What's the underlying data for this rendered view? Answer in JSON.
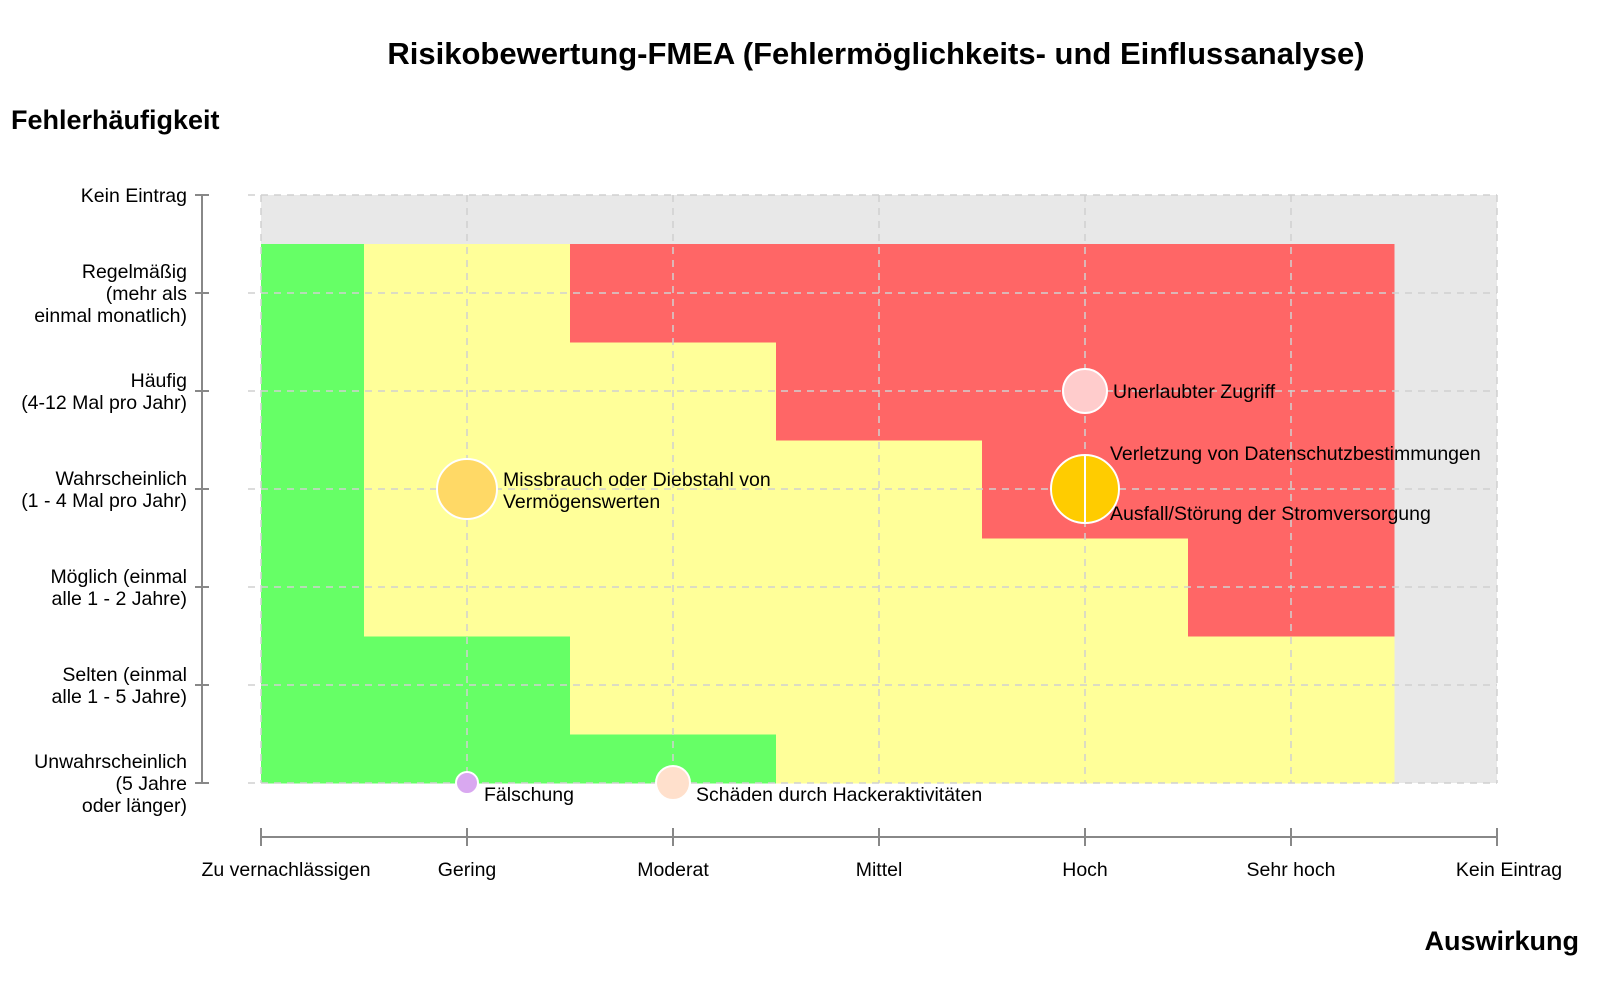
{
  "chart_data": {
    "type": "scatter",
    "title": "Risikobewertung-FMEA (Fehlermöglichkeits- und Einflussanalyse)",
    "ylabel": "Fehlerhäufigkeit",
    "xlabel": "Auswirkung",
    "x_categories": [
      "Zu vernachlässigen",
      "Gering",
      "Moderat",
      "Mittel",
      "Hoch",
      "Sehr hoch",
      "Kein Eintrag"
    ],
    "y_categories": [
      [
        "Unwahrscheinlich",
        "(5 Jahre",
        "oder länger)"
      ],
      [
        "Selten (einmal",
        "alle 1 - 5 Jahre)"
      ],
      [
        "Möglich (einmal",
        "alle 1 - 2 Jahre)"
      ],
      [
        "Wahrscheinlich",
        "(1 - 4 Mal pro Jahr)"
      ],
      [
        "Häufig",
        "(4-12 Mal pro Jahr)"
      ],
      [
        "Regelmäßig",
        "(mehr als",
        "einmal monatlich)"
      ],
      [
        "Kein Eintrag"
      ]
    ],
    "zones": {
      "colors": {
        "low": "#66ff66",
        "medium": "#ffff99",
        "high": "#ff6666",
        "none": "#e8e8e8"
      },
      "medium_min_x_by_frequency": [
        3,
        2,
        1,
        1,
        1,
        1
      ],
      "high_min_x_by_frequency": [
        null,
        null,
        4.5,
        3.5,
        2.5,
        1.5
      ]
    },
    "points": [
      {
        "label": [
          "Missbrauch oder Diebstahl von",
          "Vermögenswerten"
        ],
        "x": 1,
        "y": 3,
        "size": 3,
        "color": "#ffd966",
        "half": null
      },
      {
        "label": [
          "Unerlaubter Zugriff"
        ],
        "x": 4,
        "y": 4,
        "size": 2.2,
        "color": "#ffcccc",
        "half": null
      },
      {
        "label": [
          "Verletzung von Datenschutzbestimmungen"
        ],
        "x": 4,
        "y": 3,
        "size": 3.4,
        "color": "#ffcc00",
        "half": "left"
      },
      {
        "label": [
          "Ausfall/Störung der Stromversorgung"
        ],
        "x": 4,
        "y": 3,
        "size": 3.4,
        "color": "#ffcc00",
        "half": "right"
      },
      {
        "label": [
          "Fälschung"
        ],
        "x": 1,
        "y": 0,
        "size": 1.1,
        "color": "#d9a8f0",
        "half": null
      },
      {
        "label": [
          "Schäden durch Hackeraktivitäten"
        ],
        "x": 2,
        "y": 0,
        "size": 1.7,
        "color": "#ffe0cc",
        "half": null
      }
    ]
  }
}
